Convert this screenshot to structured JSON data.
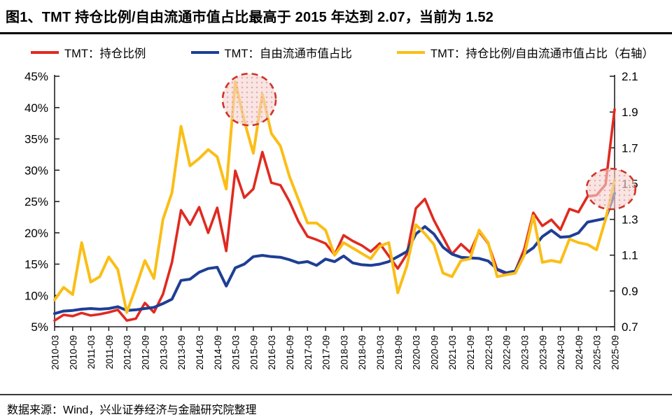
{
  "title": "图1、TMT 持仓比例/自由流通市值占比最高于 2015 年达到 2.07，当前为 1.52",
  "footer": "数据来源：Wind，兴业证券经济与金融研究院整理",
  "colors": {
    "red": "#E02A20",
    "blue": "#1E3E95",
    "yellow": "#FBBE17",
    "circle_stroke": "#CF342A",
    "circle_fill": "#F5D3D0",
    "circle_dot": "#E2968F",
    "axis": "#222222"
  },
  "legend": [
    {
      "key": "tmt-position-ratio",
      "label": "TMT：持仓比例",
      "color": "#E02A20"
    },
    {
      "key": "tmt-freefloat-share",
      "label": "TMT：自由流通市值占比",
      "color": "#1E3E95"
    },
    {
      "key": "tmt-ratio-rhs",
      "label": "TMT：持仓比例/自由流通市值占比（右轴）",
      "color": "#FBBE17"
    }
  ],
  "chart_data": {
    "type": "line",
    "title": "TMT 持仓比例/自由流通市值占比",
    "left_axis": {
      "ticks": [
        "5%",
        "10%",
        "15%",
        "20%",
        "25%",
        "30%",
        "35%",
        "40%",
        "45%"
      ],
      "min": 5,
      "max": 45
    },
    "right_axis": {
      "ticks": [
        "0.7",
        "0.9",
        "1.1",
        "1.3",
        "1.5",
        "1.7",
        "1.9",
        "2.1"
      ],
      "min": 0.7,
      "max": 2.1
    },
    "x_tick_note": "labels shown every 2nd quarter (03 / 09)",
    "quarters": [
      "2010-03",
      "2010-06",
      "2010-09",
      "2010-12",
      "2011-03",
      "2011-06",
      "2011-09",
      "2011-12",
      "2012-03",
      "2012-06",
      "2012-09",
      "2012-12",
      "2013-03",
      "2013-06",
      "2013-09",
      "2013-12",
      "2014-03",
      "2014-06",
      "2014-09",
      "2014-12",
      "2015-03",
      "2015-06",
      "2015-09",
      "2015-12",
      "2016-03",
      "2016-06",
      "2016-09",
      "2016-12",
      "2017-03",
      "2017-06",
      "2017-09",
      "2017-12",
      "2018-03",
      "2018-06",
      "2018-09",
      "2018-12",
      "2019-03",
      "2019-06",
      "2019-09",
      "2019-12",
      "2020-03",
      "2020-06",
      "2020-09",
      "2020-12",
      "2021-03",
      "2021-06",
      "2021-09",
      "2021-12",
      "2022-03",
      "2022-06",
      "2022-09",
      "2022-12",
      "2023-03",
      "2023-06",
      "2023-09",
      "2023-12",
      "2024-03",
      "2024-06",
      "2024-09",
      "2024-12",
      "2025-03",
      "2025-06",
      "2025-09"
    ],
    "series": [
      {
        "key": "tmt-position-ratio",
        "name": "TMT：持仓比例",
        "axis": "left",
        "color": "#E02A20",
        "width": 3.6,
        "values": [
          6.0,
          6.9,
          6.7,
          7.2,
          6.8,
          7.0,
          7.3,
          7.7,
          6.0,
          6.3,
          8.8,
          7.3,
          10.2,
          15.3,
          23.6,
          21.3,
          24.1,
          20.0,
          24.0,
          17.1,
          29.9,
          25.6,
          27.0,
          32.9,
          28.0,
          27.6,
          25.0,
          21.8,
          19.4,
          18.9,
          18.3,
          16.5,
          19.6,
          18.7,
          18.0,
          17.0,
          18.3,
          16.3,
          14.3,
          16.6,
          23.9,
          25.4,
          22.0,
          19.3,
          16.6,
          18.2,
          16.9,
          20.2,
          18.3,
          14.1,
          13.4,
          13.9,
          17.4,
          23.2,
          21.1,
          22.1,
          20.5,
          23.8,
          23.3,
          25.8,
          26.0,
          27.7,
          39.7
        ]
      },
      {
        "key": "tmt-freefloat-share",
        "name": "TMT：自由流通市值占比",
        "axis": "left",
        "color": "#1E3E95",
        "width": 4,
        "values": [
          7.1,
          7.5,
          7.6,
          7.8,
          7.9,
          7.8,
          7.9,
          8.2,
          7.6,
          7.7,
          7.9,
          8.1,
          8.7,
          9.4,
          12.4,
          12.6,
          13.7,
          14.3,
          14.5,
          11.5,
          14.4,
          15.0,
          16.2,
          16.4,
          16.2,
          16.1,
          15.7,
          15.2,
          15.4,
          14.8,
          15.8,
          15.4,
          16.3,
          15.2,
          14.9,
          14.8,
          15.0,
          15.4,
          16.2,
          17.0,
          19.8,
          21.0,
          19.8,
          17.7,
          16.6,
          16.1,
          16.0,
          15.9,
          15.5,
          14.2,
          13.6,
          13.9,
          16.6,
          17.6,
          19.4,
          20.4,
          19.3,
          19.4,
          20.0,
          21.7,
          22.0,
          22.3,
          26.3
        ]
      },
      {
        "key": "tmt-ratio-rhs",
        "name": "TMT：持仓比例/自由流通市值占比（右轴）",
        "axis": "right",
        "color": "#FBBE17",
        "width": 4,
        "values": [
          0.85,
          0.92,
          0.88,
          1.17,
          0.95,
          0.98,
          1.09,
          1.02,
          0.78,
          0.92,
          1.07,
          0.97,
          1.3,
          1.45,
          1.82,
          1.6,
          1.64,
          1.69,
          1.65,
          1.47,
          2.07,
          1.85,
          1.67,
          2.0,
          1.78,
          1.71,
          1.54,
          1.41,
          1.28,
          1.28,
          1.24,
          1.1,
          1.17,
          1.14,
          1.11,
          1.08,
          1.15,
          1.17,
          0.89,
          1.04,
          1.27,
          1.22,
          1.16,
          1.0,
          0.98,
          1.07,
          1.08,
          1.24,
          1.17,
          0.98,
          0.99,
          1.0,
          1.1,
          1.32,
          1.06,
          1.07,
          1.06,
          1.19,
          1.17,
          1.16,
          1.13,
          1.3,
          1.52
        ]
      }
    ],
    "annotations": [
      {
        "type": "dashed-circle",
        "q": 21.55,
        "axis": "right",
        "value": 1.97,
        "rx": 38,
        "ry": 37,
        "note": "2015 peak 2.07"
      },
      {
        "type": "dashed-circle",
        "q": 61.6,
        "axis": "right",
        "value": 1.47,
        "rx": 35,
        "ry": 29,
        "note": "current 1.52"
      }
    ]
  }
}
